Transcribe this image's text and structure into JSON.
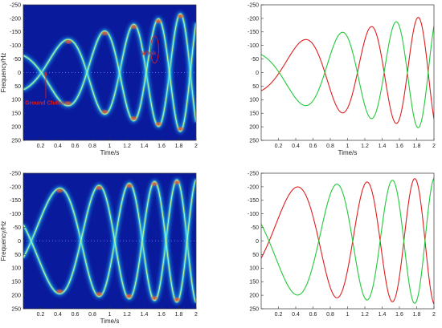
{
  "colors": {
    "spectrogram_bg": "#0a1a9c",
    "series_red": "#e01e1e",
    "series_green": "#22c93a",
    "annotation": "#d62020"
  },
  "chart_data": [
    {
      "type": "heatmap",
      "panel": "top-left",
      "xlabel": "Time/s",
      "ylabel": "Frequency/Hz",
      "xlim": [
        0,
        2
      ],
      "ylim": [
        -250,
        250
      ],
      "y_reversed": true,
      "xticks": [
        "0.2",
        "0.4",
        "0.6",
        "0.8",
        "1",
        "1.2",
        "1.4",
        "1.6",
        "1.8",
        "2"
      ],
      "yticks": [
        "-250",
        "-200",
        "-150",
        "-100",
        "-50",
        "0",
        "50",
        "100",
        "150",
        "200",
        "250"
      ],
      "colormap": "jet",
      "annotations": [
        {
          "text": "Weak",
          "x": 1.5,
          "y": -45
        },
        {
          "text": "Ground Clutter",
          "x": 0.3,
          "y": 100
        }
      ],
      "series": [
        {
          "amplitude": [
            85,
            230
          ],
          "phase_start": 0.0,
          "phase_end": 2.0,
          "start_phase": 2.3,
          "offset": 0
        },
        {
          "amplitude": [
            85,
            230
          ],
          "phase_start": 0.0,
          "phase_end": 2.0,
          "start_phase": 5.45,
          "offset": 0
        }
      ]
    },
    {
      "type": "line",
      "panel": "top-right",
      "xlabel": "Time/s",
      "ylabel": "",
      "xlim": [
        0,
        2
      ],
      "ylim": [
        -250,
        250
      ],
      "y_reversed": true,
      "xticks": [
        "0.2",
        "0.4",
        "0.6",
        "0.8",
        "1",
        "1.2",
        "1.4",
        "1.6",
        "1.8",
        "2"
      ],
      "yticks": [
        "-250",
        "-200",
        "-150",
        "-100",
        "-50",
        "0",
        "50",
        "100",
        "150",
        "200",
        "250"
      ],
      "series": [
        {
          "color": "red",
          "amplitude": [
            90,
            215
          ],
          "start_phase": 2.3,
          "offset": 0
        },
        {
          "color": "green",
          "amplitude": [
            90,
            215
          ],
          "start_phase": 5.45,
          "offset": 0
        }
      ]
    },
    {
      "type": "heatmap",
      "panel": "bottom-left",
      "xlabel": "Time/s",
      "ylabel": "Frequency/Hz",
      "xlim": [
        0,
        2
      ],
      "ylim": [
        -250,
        250
      ],
      "y_reversed": true,
      "xticks": [
        "0.2",
        "0.4",
        "0.6",
        "0.8",
        "1",
        "1.2",
        "1.4",
        "1.6",
        "1.8",
        "2"
      ],
      "yticks": [
        "-250",
        "-200",
        "-150",
        "-100",
        "-50",
        "0",
        "50",
        "100",
        "150",
        "200",
        "250"
      ],
      "colormap": "jet",
      "series": [
        {
          "amplitude": [
            185,
            230
          ],
          "start_phase": 2.8,
          "offset": 0
        },
        {
          "amplitude": [
            185,
            230
          ],
          "start_phase": 5.95,
          "offset": 0
        }
      ]
    },
    {
      "type": "line",
      "panel": "bottom-right",
      "xlabel": "",
      "ylabel": "",
      "xlim": [
        0,
        2
      ],
      "ylim": [
        -250,
        250
      ],
      "y_reversed": true,
      "xticks": [
        "0.2",
        "0.4",
        "0.6",
        "0.8",
        "1",
        "1.2",
        "1.4",
        "1.6",
        "1.8",
        "2"
      ],
      "yticks": [
        "-250",
        "-200",
        "-150",
        "-100",
        "-50",
        "0",
        "50",
        "100",
        "150",
        "200",
        "250"
      ],
      "series": [
        {
          "color": "red",
          "amplitude": [
            190,
            235
          ],
          "start_phase": 2.8,
          "offset": 0
        },
        {
          "color": "green",
          "amplitude": [
            190,
            235
          ],
          "start_phase": 5.95,
          "offset": 0
        }
      ]
    }
  ]
}
